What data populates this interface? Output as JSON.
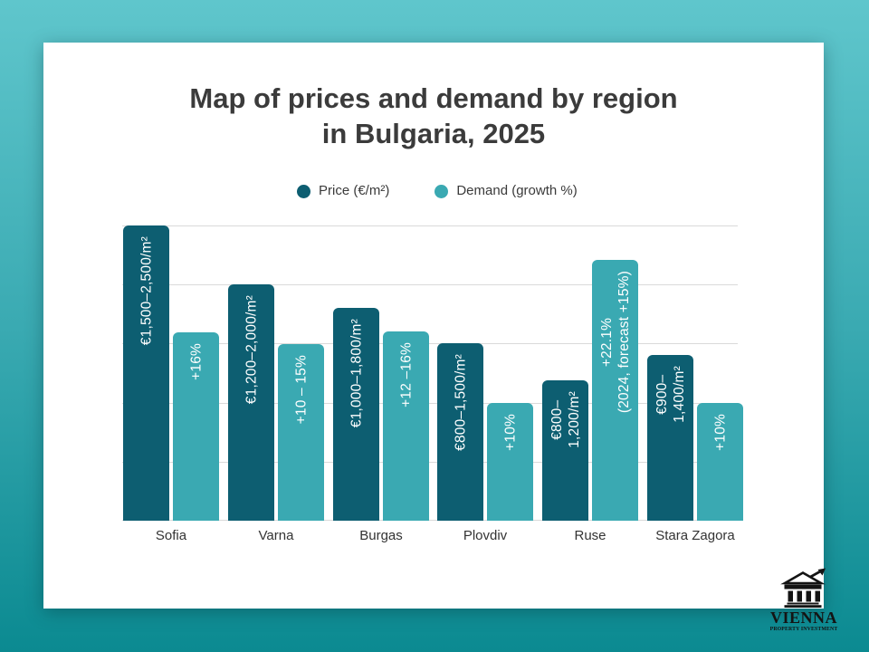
{
  "title": {
    "line1": "Map of prices and demand by region",
    "line2": "in Bulgaria, 2025"
  },
  "legend": {
    "price_label": "Price (€/m²)",
    "demand_label": "Demand (growth %)"
  },
  "logo": {
    "name": "VIENNA",
    "subtitle": "PROPERTY INVESTMENT"
  },
  "colors": {
    "price_bar": "#0d5e71",
    "demand_bar": "#3aa9b2",
    "background_top": "#5fc6cc",
    "background_bottom": "#0b8a91",
    "title_text": "#3b3b3b",
    "gridline": "#dadada",
    "bar_label_text": "#ffffff"
  },
  "chart_data": {
    "type": "bar",
    "title": "Map of prices and demand by region in Bulgaria, 2025",
    "categories": [
      "Sofia",
      "Varna",
      "Burgas",
      "Plovdiv",
      "Ruse",
      "Stara Zagora"
    ],
    "series": [
      {
        "name": "Price (€/m²)",
        "color": "#0d5e71",
        "bar_labels": [
          [
            "€1,500–2,500/m²"
          ],
          [
            "€1,200–2,000/m²"
          ],
          [
            "€1,000–1,800/m²"
          ],
          [
            "€800–1,500/m²"
          ],
          [
            "€800–",
            "1,200/m²"
          ],
          [
            "€900–",
            "1,400/m²"
          ]
        ],
        "height_pct": [
          100,
          80,
          72,
          60,
          47.5,
          56
        ]
      },
      {
        "name": "Demand (growth %)",
        "color": "#3aa9b2",
        "bar_labels": [
          [
            "+16%"
          ],
          [
            "+10 – 15%"
          ],
          [
            "+12 –16%"
          ],
          [
            "+10%"
          ],
          [
            "+22.1%",
            "(2024, forecast +15%)"
          ],
          [
            "+10%"
          ]
        ],
        "height_pct": [
          63.8,
          59.8,
          64.1,
          39.9,
          88.3,
          39.9
        ]
      }
    ],
    "gridline_count": 6,
    "ylabel": "",
    "xlabel": "",
    "legend_position": "top"
  }
}
